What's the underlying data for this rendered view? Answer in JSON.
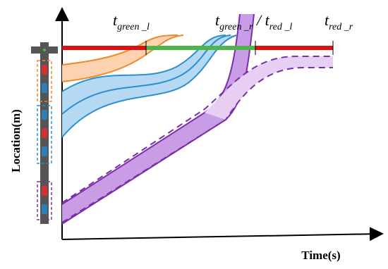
{
  "axes": {
    "y_label": "Location(m)",
    "x_label": "Time(s)"
  },
  "annotations": [
    {
      "main": "t",
      "sub": "green _l"
    },
    {
      "main": "t",
      "sub": "green _r",
      "sep": " / ",
      "main2": "t",
      "sub2": "red _l"
    },
    {
      "main": "t",
      "sub": "red _r"
    }
  ]
}
